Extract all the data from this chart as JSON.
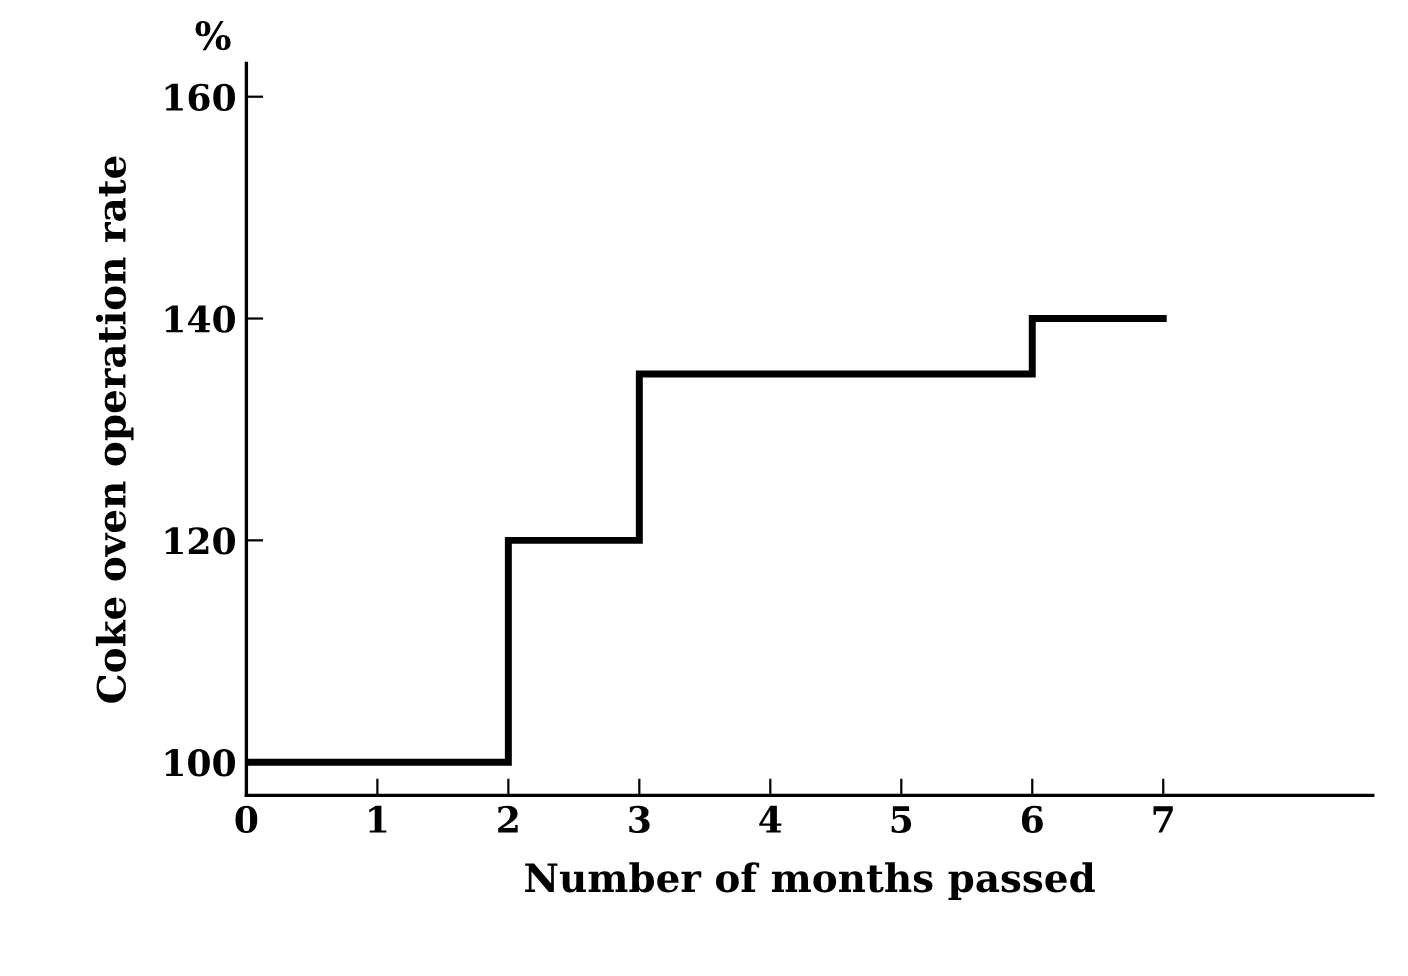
{
  "chart_data": {
    "type": "step",
    "xlabel": "Number of months passed",
    "ylabel": "Coke oven operation rate",
    "annotations": [
      "%"
    ],
    "x": [
      0,
      2,
      3,
      6,
      7
    ],
    "series": [
      {
        "color": "#000000",
        "values": [
          100,
          120,
          135,
          140,
          140
        ]
      }
    ],
    "xlim": [
      0,
      8.6
    ],
    "xticks": [
      0,
      1,
      2,
      3,
      4,
      5,
      6,
      7
    ],
    "ylim": [
      97,
      163
    ],
    "yticks": [
      100,
      120,
      140,
      160
    ],
    "grid": false,
    "marker": "none",
    "line_style": "solid"
  }
}
